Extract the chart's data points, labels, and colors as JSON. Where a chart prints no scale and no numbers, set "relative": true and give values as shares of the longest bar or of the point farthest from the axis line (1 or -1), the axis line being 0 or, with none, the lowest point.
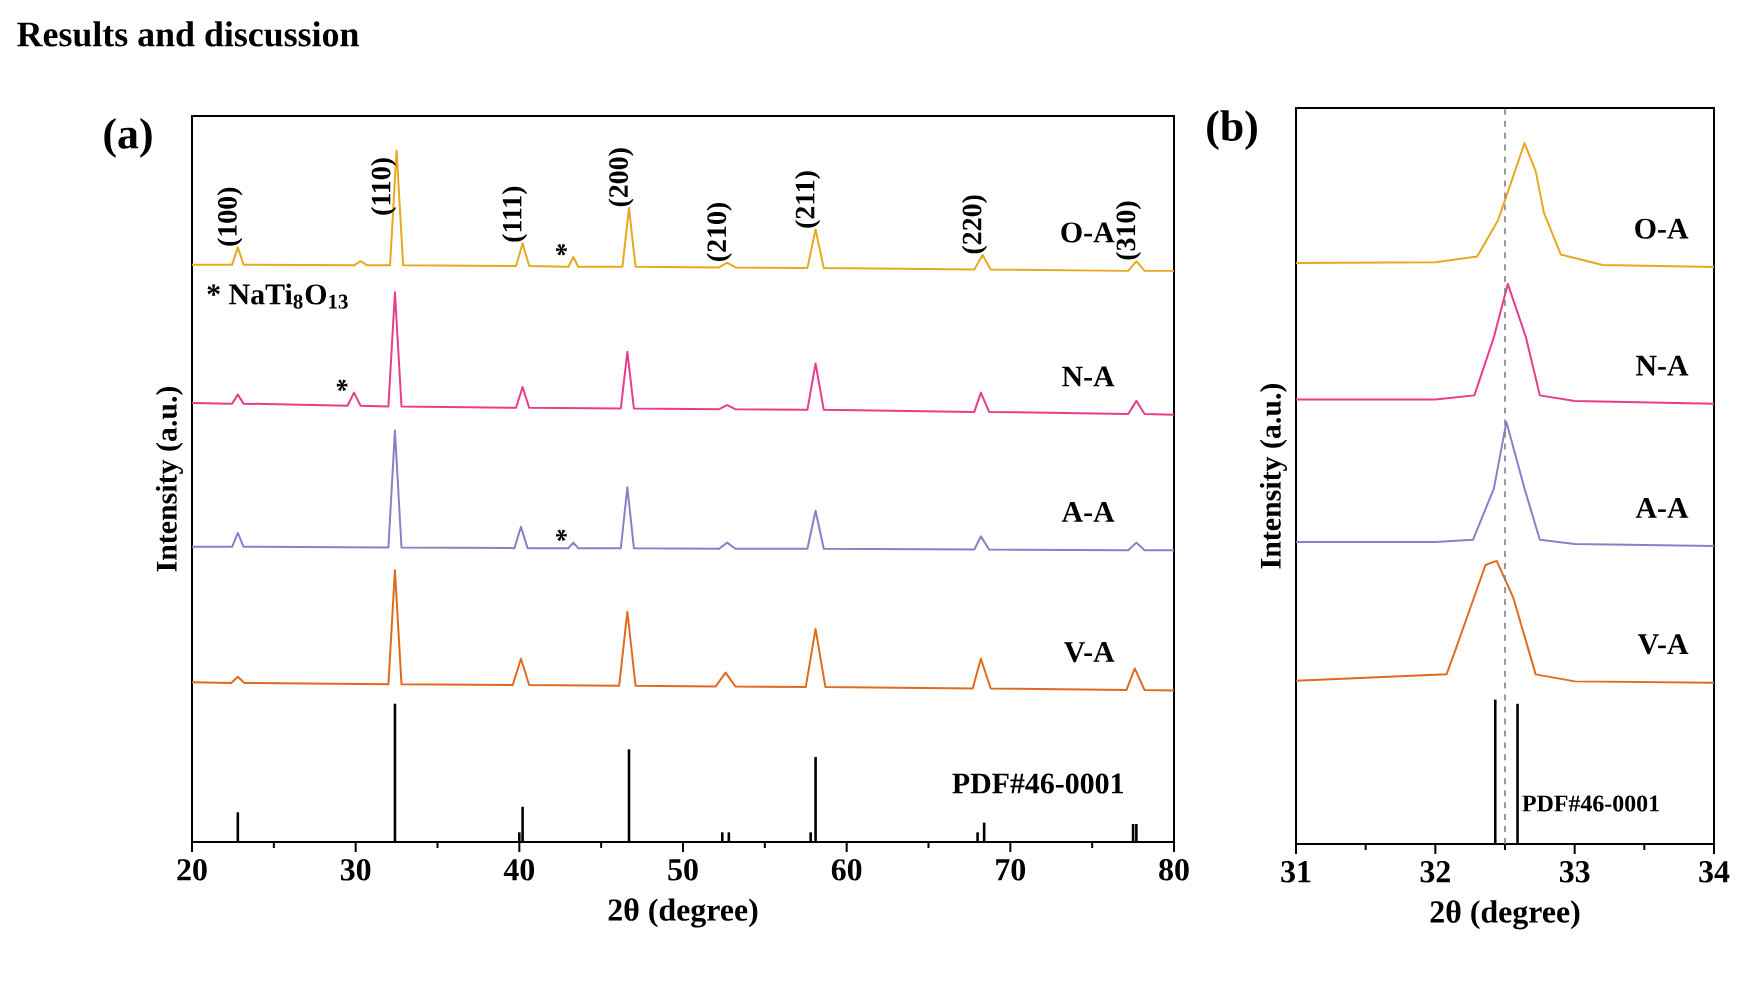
{
  "chart_data": [
    {
      "type": "line",
      "title": "(a)",
      "xlabel": "2θ (degree)",
      "ylabel": "Intensity (a.u.)",
      "relative": true,
      "xlim": [
        20,
        80
      ],
      "xticks": [
        20,
        30,
        40,
        50,
        60,
        70,
        80
      ],
      "series": [
        {
          "name": "O-A",
          "color": "#e8a820",
          "x": [
            20,
            22.45,
            22.8,
            23.15,
            29.9,
            30.3,
            30.7,
            32.1,
            32.5,
            32.9,
            39.8,
            40.2,
            40.6,
            43.0,
            43.3,
            43.6,
            46.3,
            46.7,
            47.1,
            52.2,
            52.7,
            53.2,
            57.6,
            58.1,
            58.6,
            67.8,
            68.3,
            68.8,
            77.2,
            77.7,
            78.2,
            80
          ],
          "values": [
            0.835,
            0.835,
            0.86,
            0.835,
            0.834,
            0.84,
            0.834,
            0.834,
            1.0,
            0.834,
            0.833,
            0.866,
            0.833,
            0.832,
            0.846,
            0.832,
            0.832,
            0.917,
            0.832,
            0.831,
            0.838,
            0.831,
            0.83,
            0.886,
            0.83,
            0.828,
            0.849,
            0.828,
            0.826,
            0.84,
            0.826,
            0.826
          ]
        },
        {
          "name": "N-A",
          "color": "#e83c8c",
          "x": [
            20,
            22.45,
            22.8,
            23.15,
            29.5,
            29.9,
            30.3,
            32.0,
            32.4,
            32.8,
            39.8,
            40.2,
            40.6,
            46.2,
            46.6,
            47.0,
            52.2,
            52.7,
            53.2,
            57.6,
            58.1,
            58.6,
            67.8,
            68.2,
            68.7,
            77.2,
            77.7,
            78.2,
            80
          ],
          "values": [
            0.635,
            0.634,
            0.647,
            0.634,
            0.631,
            0.65,
            0.631,
            0.63,
            0.795,
            0.63,
            0.628,
            0.658,
            0.628,
            0.627,
            0.709,
            0.627,
            0.626,
            0.632,
            0.626,
            0.625,
            0.692,
            0.625,
            0.622,
            0.65,
            0.622,
            0.619,
            0.638,
            0.619,
            0.618
          ]
        },
        {
          "name": "A-A",
          "color": "#8b7fc8",
          "x": [
            20,
            22.45,
            22.8,
            23.15,
            32.0,
            32.4,
            32.8,
            39.7,
            40.1,
            40.5,
            43.0,
            43.3,
            43.6,
            46.2,
            46.6,
            47.0,
            52.2,
            52.7,
            53.2,
            57.6,
            58.1,
            58.6,
            67.8,
            68.2,
            68.7,
            77.2,
            77.7,
            78.2,
            80
          ],
          "values": [
            0.427,
            0.427,
            0.447,
            0.427,
            0.426,
            0.595,
            0.426,
            0.425,
            0.456,
            0.425,
            0.425,
            0.433,
            0.425,
            0.425,
            0.513,
            0.425,
            0.424,
            0.433,
            0.424,
            0.424,
            0.479,
            0.424,
            0.423,
            0.442,
            0.423,
            0.422,
            0.433,
            0.422,
            0.422
          ]
        },
        {
          "name": "V-A",
          "color": "#e06a1e",
          "x": [
            20,
            22.4,
            22.8,
            23.2,
            32.0,
            32.4,
            32.8,
            39.6,
            40.1,
            40.6,
            46.1,
            46.6,
            47.1,
            52.0,
            52.6,
            53.2,
            57.5,
            58.1,
            58.7,
            67.7,
            68.2,
            68.8,
            77.1,
            77.6,
            78.2,
            80
          ],
          "values": [
            0.231,
            0.23,
            0.239,
            0.23,
            0.228,
            0.393,
            0.228,
            0.227,
            0.265,
            0.227,
            0.226,
            0.333,
            0.226,
            0.225,
            0.245,
            0.225,
            0.224,
            0.308,
            0.224,
            0.222,
            0.265,
            0.222,
            0.22,
            0.251,
            0.22,
            0.219
          ]
        },
        {
          "name": "PDF#46-0001",
          "type": "bar",
          "color": "#000000",
          "x": [
            22.8,
            32.4,
            40.0,
            40.2,
            46.7,
            52.4,
            52.8,
            57.8,
            58.1,
            68.0,
            68.4,
            77.5,
            77.7
          ],
          "values": [
            0.043,
            0.2,
            0.014,
            0.051,
            0.134,
            0.014,
            0.014,
            0.014,
            0.123,
            0.014,
            0.028,
            0.026,
            0.026
          ]
        }
      ],
      "annotations": [
        "Results and discussion",
        "* NaTi$_{8}$O$_{13}$",
        {
          "text": "(100)",
          "x": 22.8,
          "y": 0.86
        },
        {
          "text": "(110)",
          "x": 32.5,
          "y": 1.0
        },
        {
          "text": "(111)",
          "x": 40.2,
          "y": 0.866
        },
        {
          "text": "(200)",
          "x": 46.7,
          "y": 0.917
        },
        {
          "text": "(210)",
          "x": 52.7,
          "y": 0.838
        },
        {
          "text": "(211)",
          "x": 58.1,
          "y": 0.886
        },
        {
          "text": "(220)",
          "x": 68.3,
          "y": 0.849
        },
        {
          "text": "(310)",
          "x": 77.7,
          "y": 0.84
        },
        {
          "text": "*",
          "x": 43.3,
          "y": 0.846
        },
        {
          "text": "*",
          "x": 29.9,
          "y": 0.65
        },
        {
          "text": "*",
          "x": 43.3,
          "y": 0.433
        }
      ]
    },
    {
      "type": "line",
      "title": "(b)",
      "xlabel": "2θ (degree)",
      "ylabel": "Intensity (a.u.)",
      "relative": true,
      "xlim": [
        31,
        34
      ],
      "xticks": [
        31,
        32,
        33,
        34
      ],
      "series": [
        {
          "name": "O-A",
          "color": "#e8a820",
          "x": [
            31,
            32.0,
            32.3,
            32.45,
            32.52,
            32.64,
            32.72,
            32.78,
            32.9,
            33.2,
            34
          ],
          "values": [
            0.829,
            0.83,
            0.838,
            0.89,
            0.93,
            1.0,
            0.96,
            0.9,
            0.841,
            0.826,
            0.823
          ]
        },
        {
          "name": "N-A",
          "color": "#e83c8c",
          "x": [
            31,
            32.0,
            32.28,
            32.42,
            32.52,
            32.65,
            32.75,
            33.0,
            34
          ],
          "values": [
            0.634,
            0.634,
            0.64,
            0.723,
            0.799,
            0.723,
            0.64,
            0.632,
            0.628
          ]
        },
        {
          "name": "A-A",
          "color": "#8b7fc8",
          "x": [
            31,
            32.0,
            32.27,
            32.42,
            32.51,
            32.64,
            32.75,
            33.0,
            34
          ],
          "values": [
            0.431,
            0.431,
            0.434,
            0.507,
            0.602,
            0.507,
            0.434,
            0.428,
            0.425
          ]
        },
        {
          "name": "V-A",
          "color": "#e06a1e",
          "x": [
            31,
            32.08,
            32.15,
            32.36,
            32.44,
            32.56,
            32.72,
            33.0,
            34
          ],
          "values": [
            0.233,
            0.242,
            0.28,
            0.398,
            0.404,
            0.351,
            0.242,
            0.232,
            0.23
          ]
        },
        {
          "name": "PDF#46-0001",
          "type": "bar",
          "color": "#000000",
          "x": [
            32.43,
            32.59
          ],
          "values": [
            0.206,
            0.2
          ]
        }
      ],
      "ref_lines": [
        {
          "axis": "x",
          "value": 32.5,
          "color": "#808080",
          "line_style": "dashed"
        }
      ]
    }
  ]
}
